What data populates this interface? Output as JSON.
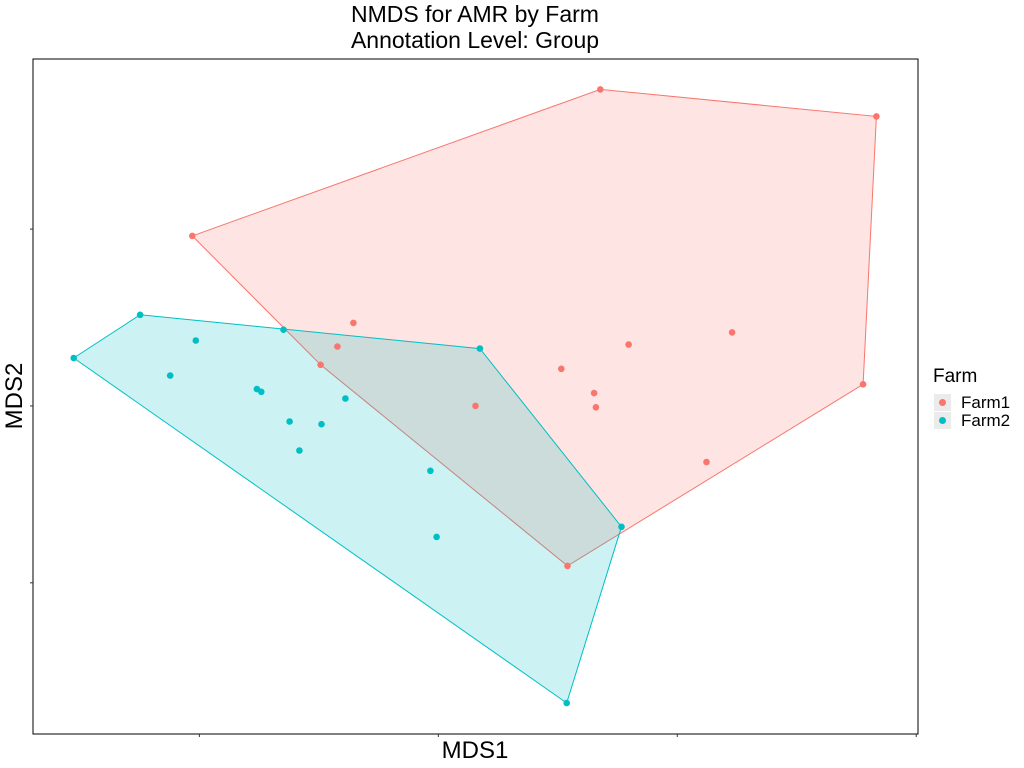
{
  "chart_data": {
    "type": "scatter",
    "title": "NMDS for AMR by Farm",
    "subtitle": "Annotation Level: Group",
    "xlabel": "MDS1",
    "ylabel": "MDS2",
    "xlim": [
      0,
      1
    ],
    "ylim": [
      0,
      1
    ],
    "grid": false,
    "hulls": true,
    "legend": {
      "title": "Farm",
      "placement": "right"
    },
    "series": [
      {
        "name": "Farm1",
        "color": "#F8766D",
        "points": [
          {
            "x": 0.18,
            "y": 0.738
          },
          {
            "x": 0.641,
            "y": 0.955
          },
          {
            "x": 0.953,
            "y": 0.915
          },
          {
            "x": 0.938,
            "y": 0.518
          },
          {
            "x": 0.604,
            "y": 0.249
          },
          {
            "x": 0.362,
            "y": 0.609
          },
          {
            "x": 0.344,
            "y": 0.574
          },
          {
            "x": 0.325,
            "y": 0.547
          },
          {
            "x": 0.5,
            "y": 0.486
          },
          {
            "x": 0.597,
            "y": 0.541
          },
          {
            "x": 0.634,
            "y": 0.505
          },
          {
            "x": 0.673,
            "y": 0.577
          },
          {
            "x": 0.636,
            "y": 0.484
          },
          {
            "x": 0.79,
            "y": 0.595
          },
          {
            "x": 0.761,
            "y": 0.403
          }
        ]
      },
      {
        "name": "Farm2",
        "color": "#00BFC4",
        "points": [
          {
            "x": 0.046,
            "y": 0.557
          },
          {
            "x": 0.121,
            "y": 0.621
          },
          {
            "x": 0.184,
            "y": 0.583
          },
          {
            "x": 0.155,
            "y": 0.531
          },
          {
            "x": 0.283,
            "y": 0.599
          },
          {
            "x": 0.505,
            "y": 0.571
          },
          {
            "x": 0.665,
            "y": 0.307
          },
          {
            "x": 0.603,
            "y": 0.046
          },
          {
            "x": 0.253,
            "y": 0.511
          },
          {
            "x": 0.258,
            "y": 0.507
          },
          {
            "x": 0.29,
            "y": 0.463
          },
          {
            "x": 0.326,
            "y": 0.459
          },
          {
            "x": 0.353,
            "y": 0.497
          },
          {
            "x": 0.301,
            "y": 0.42
          },
          {
            "x": 0.449,
            "y": 0.39
          },
          {
            "x": 0.456,
            "y": 0.292
          }
        ]
      }
    ]
  }
}
